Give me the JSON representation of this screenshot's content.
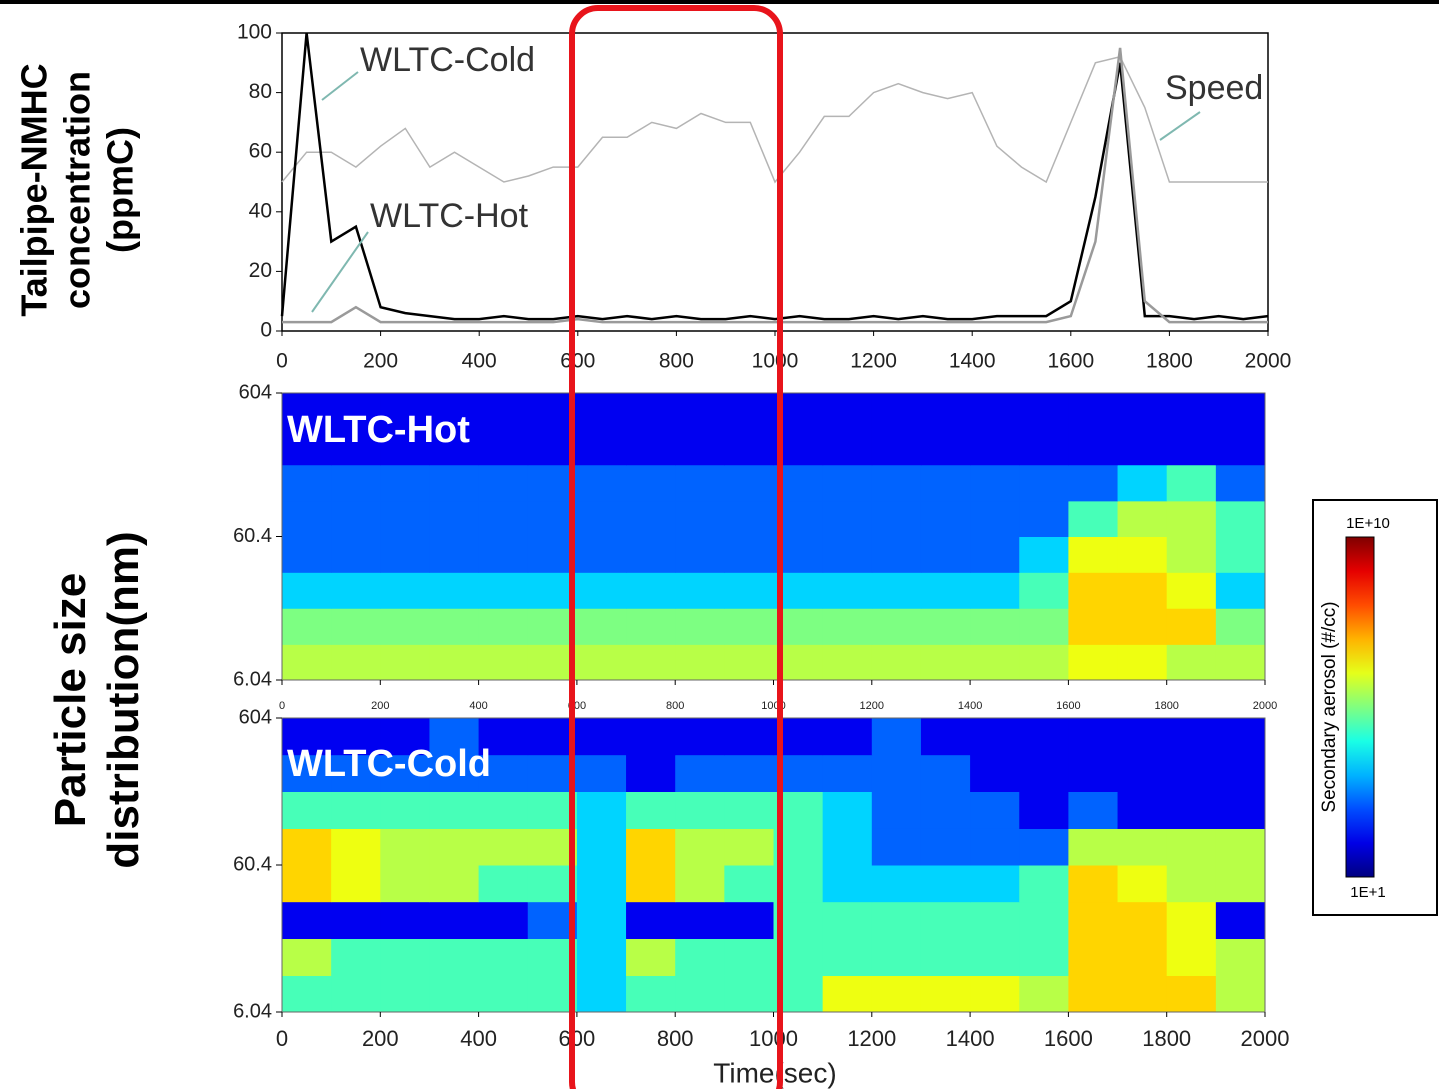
{
  "chart_data": [
    {
      "type": "line",
      "ylabel": [
        "Tailpipe-NMHC",
        "concentration",
        "(ppmC)"
      ],
      "x": [
        0,
        50,
        100,
        150,
        200,
        250,
        300,
        350,
        400,
        450,
        500,
        550,
        600,
        650,
        700,
        750,
        800,
        850,
        900,
        950,
        1000,
        1050,
        1100,
        1150,
        1200,
        1250,
        1300,
        1350,
        1400,
        1450,
        1500,
        1550,
        1600,
        1650,
        1700,
        1750,
        1800,
        1850,
        1900,
        1950,
        2000
      ],
      "series": [
        {
          "name": "WLTC-Cold",
          "color": "#000000",
          "values": [
            5,
            100,
            30,
            35,
            8,
            6,
            5,
            4,
            4,
            5,
            4,
            4,
            5,
            4,
            5,
            4,
            5,
            4,
            4,
            5,
            4,
            5,
            4,
            4,
            5,
            4,
            5,
            4,
            4,
            5,
            5,
            5,
            10,
            45,
            90,
            5,
            5,
            4,
            5,
            4,
            5
          ]
        },
        {
          "name": "WLTC-Hot",
          "color": "#9a9a9a",
          "values": [
            3,
            3,
            3,
            8,
            3,
            3,
            3,
            3,
            3,
            3,
            3,
            3,
            4,
            3,
            3,
            3,
            3,
            3,
            3,
            3,
            3,
            3,
            3,
            3,
            3,
            3,
            3,
            3,
            3,
            3,
            3,
            3,
            5,
            30,
            95,
            10,
            3,
            3,
            3,
            3,
            3
          ]
        },
        {
          "name": "Speed",
          "color": "#b4b4b4",
          "values": [
            50,
            60,
            60,
            55,
            62,
            68,
            55,
            60,
            55,
            50,
            52,
            55,
            55,
            65,
            65,
            70,
            68,
            73,
            70,
            70,
            50,
            60,
            72,
            72,
            80,
            83,
            80,
            78,
            80,
            62,
            55,
            50,
            70,
            90,
            92,
            75,
            50,
            50,
            50,
            50,
            50
          ]
        }
      ],
      "xlim": [
        0,
        2000
      ],
      "xticks": [
        0,
        200,
        400,
        600,
        800,
        1000,
        1200,
        1400,
        1600,
        1800,
        2000
      ],
      "ylim": [
        0,
        100
      ],
      "yticks": [
        0,
        20,
        40,
        60,
        80,
        100
      ]
    },
    {
      "type": "heatmap",
      "title": "WLTC-Hot",
      "ylabel": [
        "Particle size",
        "distribution(nm)"
      ],
      "xbins": [
        0,
        100,
        200,
        300,
        400,
        500,
        600,
        700,
        800,
        900,
        1000,
        1100,
        1200,
        1300,
        1400,
        1500,
        1600,
        1700,
        1800,
        1900,
        2000
      ],
      "ybins": [
        6.04,
        10.7,
        19.1,
        34,
        60.4,
        107,
        191,
        340,
        604
      ],
      "values": [
        [
          1000000.0,
          1000000.0,
          1000000.0,
          1000000.0,
          1000000.0,
          1000000.0,
          1000000.0,
          1000000.0,
          1000000.0,
          1000000.0,
          1000000.0,
          1000000.0,
          1000000.0,
          1000000.0,
          1000000.0,
          1000000.0,
          3000000.0,
          3000000.0,
          1000000.0,
          1000000.0
        ],
        [
          300000.0,
          300000.0,
          300000.0,
          300000.0,
          300000.0,
          300000.0,
          300000.0,
          300000.0,
          300000.0,
          300000.0,
          300000.0,
          300000.0,
          300000.0,
          300000.0,
          300000.0,
          300000.0,
          10000000.0,
          10000000.0,
          10000000.0,
          300000.0
        ],
        [
          10000.0,
          10000.0,
          10000.0,
          10000.0,
          10000.0,
          10000.0,
          10000.0,
          10000.0,
          10000.0,
          10000.0,
          10000.0,
          10000.0,
          10000.0,
          10000.0,
          10000.0,
          100000.0,
          10000000.0,
          10000000.0,
          3000000.0,
          10000.0
        ],
        [
          1000.0,
          1000.0,
          1000.0,
          1000.0,
          1000.0,
          1000.0,
          1000.0,
          1000.0,
          1000.0,
          1000.0,
          1000.0,
          1000.0,
          1000.0,
          1000.0,
          1000.0,
          10000.0,
          3000000.0,
          3000000.0,
          1000000.0,
          100000.0
        ],
        [
          1000.0,
          1000.0,
          1000.0,
          1000.0,
          1000.0,
          1000.0,
          1000.0,
          1000.0,
          1000.0,
          1000.0,
          1000.0,
          1000.0,
          1000.0,
          1000.0,
          1000.0,
          1000.0,
          100000.0,
          1000000.0,
          1000000.0,
          100000.0
        ],
        [
          1000.0,
          1000.0,
          1000.0,
          1000.0,
          1000.0,
          1000.0,
          1000.0,
          1000.0,
          1000.0,
          1000.0,
          1000.0,
          1000.0,
          1000.0,
          1000.0,
          1000.0,
          1000.0,
          1000.0,
          10000.0,
          100000.0,
          1000.0
        ],
        [
          100.0,
          100.0,
          100.0,
          100.0,
          100.0,
          100.0,
          100.0,
          100.0,
          100.0,
          100.0,
          100.0,
          100.0,
          100.0,
          100.0,
          100.0,
          100.0,
          100.0,
          100.0,
          100.0,
          100.0
        ],
        [
          100.0,
          100.0,
          100.0,
          100.0,
          100.0,
          100.0,
          100.0,
          100.0,
          100.0,
          100.0,
          100.0,
          100.0,
          100.0,
          100.0,
          100.0,
          100.0,
          100.0,
          100.0,
          100.0,
          100.0
        ]
      ],
      "xlim": [
        0,
        2000
      ],
      "xticks": [
        0,
        200,
        400,
        600,
        800,
        1000,
        1200,
        1400,
        1600,
        1800,
        2000
      ],
      "ylim": [
        6.04,
        604
      ],
      "yticks": [
        6.04,
        60.4,
        604
      ],
      "log_y": true,
      "clim": [
        10,
        10000000000.0
      ],
      "log_color": true
    },
    {
      "type": "heatmap",
      "title": "WLTC-Cold",
      "xlabel": "Time(sec)",
      "xbins": [
        0,
        100,
        200,
        300,
        400,
        500,
        600,
        700,
        800,
        900,
        1000,
        1100,
        1200,
        1300,
        1400,
        1500,
        1600,
        1700,
        1800,
        1900,
        2000
      ],
      "ybins": [
        6.04,
        10.7,
        19.1,
        34,
        60.4,
        107,
        191,
        340,
        604
      ],
      "values": [
        [
          100000.0,
          100000.0,
          100000.0,
          100000.0,
          100000.0,
          100000.0,
          10000.0,
          100000.0,
          100000.0,
          100000.0,
          100000.0,
          3000000.0,
          3000000.0,
          3000000.0,
          3000000.0,
          1000000.0,
          10000000.0,
          10000000.0,
          10000000.0,
          1000000.0
        ],
        [
          1000000.0,
          100000.0,
          100000.0,
          100000.0,
          100000.0,
          100000.0,
          10000.0,
          1000000.0,
          100000.0,
          100000.0,
          100000.0,
          100000.0,
          100000.0,
          100000.0,
          100000.0,
          100000.0,
          10000000.0,
          10000000.0,
          3000000.0,
          1000000.0
        ],
        [
          100.0,
          100.0,
          100.0,
          100.0,
          100.0,
          1000.0,
          10000.0,
          100.0,
          100.0,
          100.0,
          100000.0,
          100000.0,
          100000.0,
          100000.0,
          100000.0,
          100000.0,
          10000000.0,
          10000000.0,
          3000000.0,
          100.0
        ],
        [
          10000000.0,
          3000000.0,
          1000000.0,
          1000000.0,
          100000.0,
          100000.0,
          10000.0,
          10000000.0,
          1000000.0,
          100000.0,
          100000.0,
          10000.0,
          10000.0,
          10000.0,
          10000.0,
          100000.0,
          10000000.0,
          3000000.0,
          1000000.0,
          1000000.0
        ],
        [
          10000000.0,
          3000000.0,
          1000000.0,
          1000000.0,
          1000000.0,
          1000000.0,
          10000.0,
          10000000.0,
          1000000.0,
          1000000.0,
          100000.0,
          10000.0,
          1000.0,
          1000.0,
          1000.0,
          1000.0,
          1000000.0,
          1000000.0,
          1000000.0,
          1000000.0
        ],
        [
          100000.0,
          100000.0,
          100000.0,
          100000.0,
          100000.0,
          100000.0,
          10000.0,
          100000.0,
          100000.0,
          100000.0,
          100000.0,
          10000.0,
          1000.0,
          1000.0,
          1000.0,
          100.0,
          1000.0,
          100.0,
          100.0,
          100.0
        ],
        [
          1000.0,
          1000.0,
          1000.0,
          1000.0,
          1000.0,
          1000.0,
          1000.0,
          100.0,
          1000.0,
          1000.0,
          1000.0,
          1000.0,
          1000.0,
          1000.0,
          100.0,
          100.0,
          100.0,
          100.0,
          100.0,
          100.0
        ],
        [
          100.0,
          100.0,
          100.0,
          1000.0,
          100.0,
          100.0,
          100.0,
          100.0,
          100.0,
          100.0,
          100.0,
          100.0,
          1000.0,
          100.0,
          100.0,
          100.0,
          100.0,
          100.0,
          100.0,
          100.0
        ]
      ],
      "xlim": [
        0,
        2000
      ],
      "xticks": [
        0,
        200,
        400,
        600,
        800,
        1000,
        1200,
        1400,
        1600,
        1800,
        2000
      ],
      "ylim": [
        6.04,
        604
      ],
      "yticks": [
        6.04,
        60.4,
        604
      ],
      "log_y": true,
      "clim": [
        10,
        10000000000.0
      ],
      "log_color": true,
      "colorbar": {
        "label": "Secondary aerosol (#/cc)",
        "ticks": [
          {
            "value": 10000000000.0,
            "label": "1E+10"
          },
          {
            "value": 10,
            "label": "1E+1"
          }
        ]
      }
    }
  ]
}
